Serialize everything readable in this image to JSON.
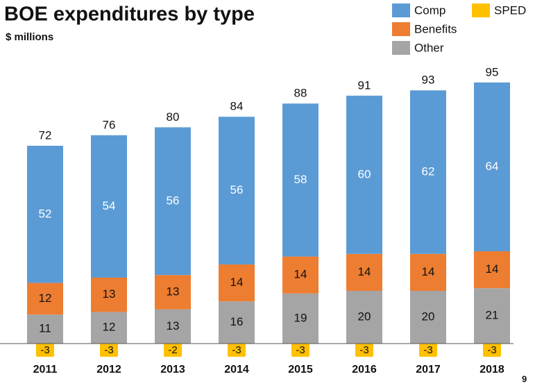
{
  "chart_data": {
    "type": "stacked_bar",
    "title": "BOE expenditures by type",
    "subtitle": "$ millions",
    "categories": [
      "2011",
      "2012",
      "2013",
      "2014",
      "2015",
      "2016",
      "2017",
      "2018"
    ],
    "series": [
      {
        "name": "Comp",
        "color": "#5b9bd5",
        "values": [
          52,
          54,
          56,
          56,
          58,
          60,
          62,
          64
        ]
      },
      {
        "name": "Benefits",
        "color": "#ed7d31",
        "values": [
          12,
          13,
          13,
          14,
          14,
          14,
          14,
          14
        ]
      },
      {
        "name": "Other",
        "color": "#a5a5a5",
        "values": [
          11,
          12,
          13,
          16,
          19,
          20,
          20,
          21
        ]
      },
      {
        "name": "SPED",
        "color": "#ffc000",
        "values": [
          -3,
          -3,
          -2,
          -3,
          -3,
          -3,
          -3,
          -3
        ]
      }
    ],
    "totals": [
      72,
      76,
      80,
      84,
      88,
      91,
      93,
      95
    ],
    "legend": "top-right",
    "page_number": "9"
  }
}
